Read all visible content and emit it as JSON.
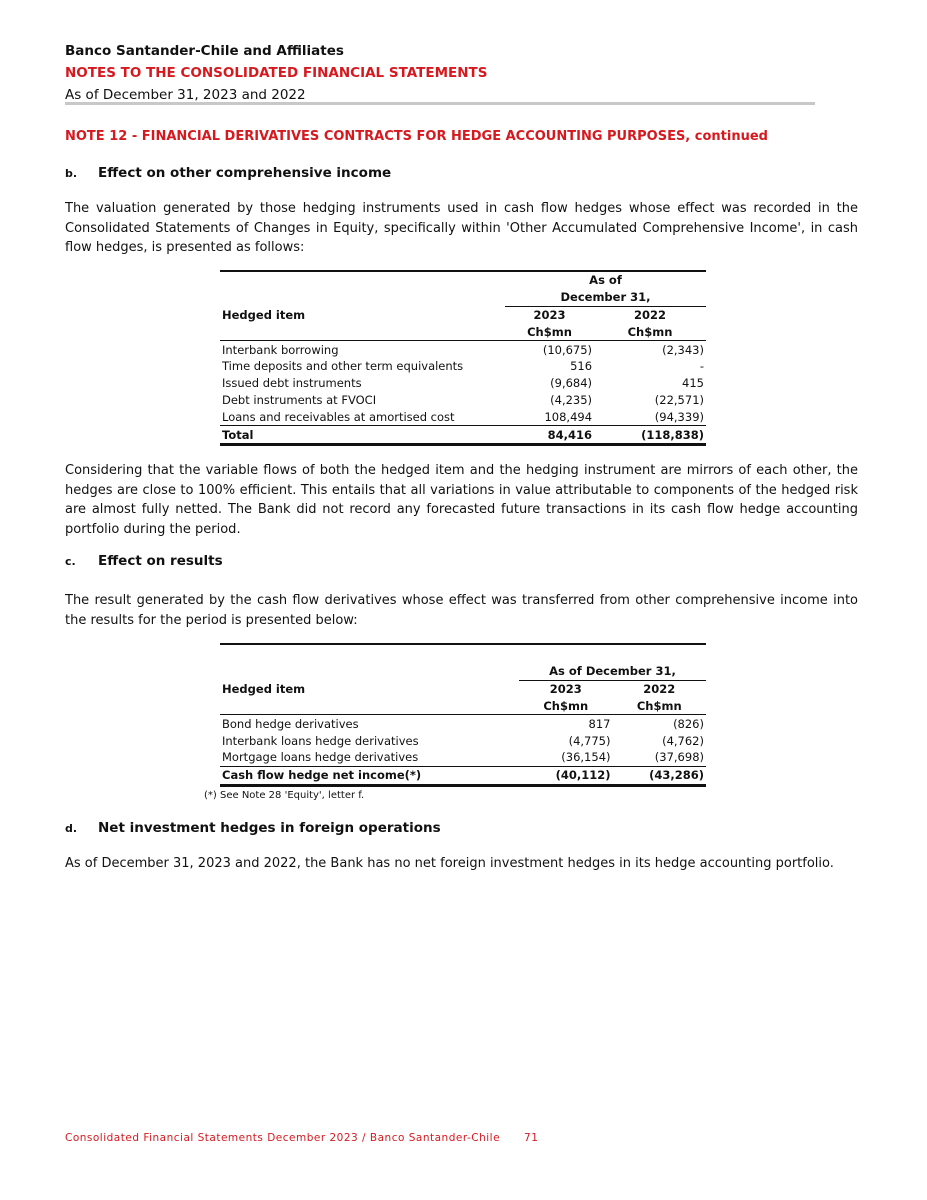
{
  "header": {
    "company": "Banco Santander-Chile and Affiliates",
    "notes_title": "NOTES TO THE CONSOLIDATED FINANCIAL STATEMENTS",
    "as_of": "As of December 31, 2023 and 2022"
  },
  "note_title": "NOTE 12 - FINANCIAL DERIVATIVES CONTRACTS FOR HEDGE ACCOUNTING PURPOSES, continued",
  "section_b": {
    "letter": "b.",
    "title": "Effect on other comprehensive income",
    "intro": "The valuation generated by those hedging instruments used in cash flow hedges whose effect was recorded in the Consolidated Statements of Changes in Equity, specifically within 'Other Accumulated Comprehensive Income', in cash flow hedges, is presented as follows:",
    "table": {
      "group_header_1": "As of",
      "group_header_2": "December 31,",
      "col0": "Hedged item",
      "col1_year": "2023",
      "col1_unit": "Ch$mn",
      "col2_year": "2022",
      "col2_unit": "Ch$mn",
      "rows": [
        [
          "Interbank borrowing",
          "(10,675)",
          "(2,343)"
        ],
        [
          "Time deposits and other term equivalents",
          "516",
          "-"
        ],
        [
          "Issued debt instruments",
          "(9,684)",
          "415"
        ],
        [
          "Debt instruments at FVOCI",
          "(4,235)",
          "(22,571)"
        ],
        [
          "Loans and receivables at amortised cost",
          "108,494",
          "(94,339)"
        ]
      ],
      "total": [
        "Total",
        "84,416",
        "(118,838)"
      ]
    },
    "after": "Considering that the variable flows of both the hedged item and the hedging instrument are mirrors of each other, the hedges are close to 100% efficient. This entails that all variations in value attributable to components of the hedged risk are almost fully netted. The Bank did not record any forecasted future transactions in its cash flow hedge accounting portfolio during the period."
  },
  "section_c": {
    "letter": "c.",
    "title": "Effect on results",
    "intro": "The result generated by the cash flow derivatives whose effect was transferred from other comprehensive income into the results for the period is presented below:",
    "table": {
      "group_header": "As of December 31,",
      "col0": "Hedged item",
      "col1_year": "2023",
      "col1_unit": "Ch$mn",
      "col2_year": "2022",
      "col2_unit": "Ch$mn",
      "rows": [
        [
          "Bond hedge derivatives",
          "817",
          "(826)"
        ],
        [
          "Interbank loans hedge derivatives",
          "(4,775)",
          "(4,762)"
        ],
        [
          "Mortgage loans hedge derivatives",
          "(36,154)",
          "(37,698)"
        ]
      ],
      "total": [
        "Cash flow hedge net income(*)",
        "(40,112)",
        "(43,286)"
      ]
    },
    "footnote": "(*) See Note 28 'Equity', letter f."
  },
  "section_d": {
    "letter": "d.",
    "title": "Net investment hedges in foreign operations",
    "text": "As of December 31, 2023 and 2022, the Bank has no net foreign investment hedges in its hedge accounting portfolio."
  },
  "footer": {
    "text": "Consolidated Financial Statements December 2023 / Banco Santander-Chile",
    "page": "71"
  }
}
